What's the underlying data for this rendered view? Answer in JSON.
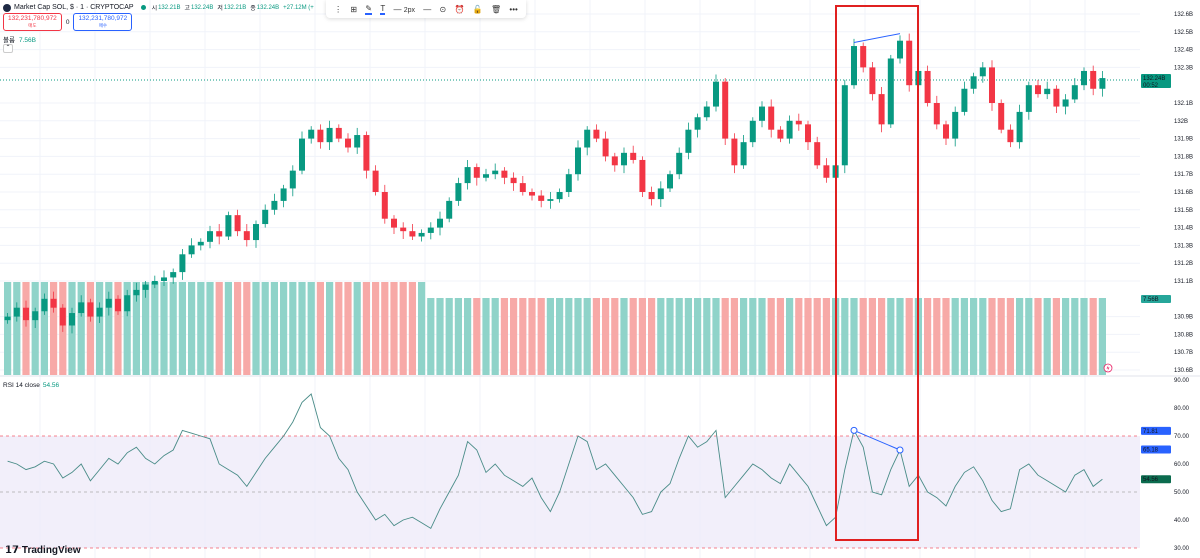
{
  "header": {
    "symbol": "Market Cap SOL, $ · 1 · CRYPTOCAP",
    "open_label": "시",
    "open": "132.21B",
    "high_label": "고",
    "high": "132.24B",
    "low_label": "저",
    "low": "132.21B",
    "close_label": "종",
    "close": "132.24B",
    "change": "+27.12M (+"
  },
  "trade": {
    "sell_price": "132,231,780,972",
    "sell_label": "매도",
    "separator": "0",
    "buy_price": "132,231,780,972",
    "buy_label": "매수"
  },
  "volume_legend": {
    "label": "볼륨",
    "value": "7.56B"
  },
  "toolbar": {},
  "rsi_legend": {
    "label": "RSI 14 close",
    "value": "54.56"
  },
  "branding": "TradingView",
  "price_tag": {
    "value": "132.24B",
    "countdown": "00:52"
  },
  "volume_tag": "7.56B",
  "rsi_tags": {
    "a": "71.81",
    "b": "65.18",
    "current": "54.56"
  },
  "colors": {
    "up": "#089981",
    "down": "#f23645",
    "vol_up": "#8fd3c9",
    "vol_down": "#f7a9a7",
    "rsi_line": "#4a8c88",
    "accent": "#2962ff"
  },
  "chart_data": {
    "type": "candlestick",
    "price_axis": {
      "ticks": [
        "132.6B",
        "132.5B",
        "132.4B",
        "132.3B",
        "132.1B",
        "132B",
        "131.9B",
        "131.8B",
        "131.7B",
        "131.6B",
        "131.5B",
        "131.4B",
        "131.3B",
        "131.2B",
        "131.1B",
        "130.9B",
        "130.8B",
        "130.7B",
        "130.6B"
      ],
      "range": [
        130.6,
        132.6
      ]
    },
    "closes": [
      130.9,
      130.95,
      130.88,
      130.93,
      131.0,
      130.95,
      130.85,
      130.92,
      130.98,
      130.9,
      130.95,
      131.0,
      130.93,
      131.02,
      131.05,
      131.08,
      131.1,
      131.12,
      131.15,
      131.25,
      131.3,
      131.32,
      131.38,
      131.35,
      131.47,
      131.38,
      131.33,
      131.42,
      131.5,
      131.55,
      131.62,
      131.72,
      131.9,
      131.95,
      131.88,
      131.96,
      131.9,
      131.85,
      131.92,
      131.72,
      131.6,
      131.45,
      131.4,
      131.38,
      131.35,
      131.37,
      131.4,
      131.45,
      131.55,
      131.65,
      131.74,
      131.68,
      131.7,
      131.72,
      131.68,
      131.65,
      131.6,
      131.58,
      131.55,
      131.56,
      131.6,
      131.7,
      131.85,
      131.95,
      131.9,
      131.8,
      131.75,
      131.82,
      131.78,
      131.6,
      131.56,
      131.62,
      131.7,
      131.82,
      131.95,
      132.02,
      132.08,
      132.22,
      131.9,
      131.75,
      131.88,
      132.0,
      132.08,
      131.95,
      131.9,
      132.0,
      131.98,
      131.88,
      131.75,
      131.68,
      131.75,
      132.2,
      132.42,
      132.3,
      132.15,
      131.98,
      132.35,
      132.45,
      132.2,
      132.28,
      132.1,
      131.98,
      131.9,
      132.05,
      132.18,
      132.25,
      132.3,
      132.1,
      131.95,
      131.88,
      132.05,
      132.2,
      132.15,
      132.18,
      132.08,
      132.12,
      132.2,
      132.28,
      132.18,
      132.24
    ],
    "volume_regimes": [
      {
        "count": 46,
        "value": 8.2
      },
      {
        "count": 74,
        "value": 7.56
      }
    ],
    "rsi": {
      "period": 14,
      "ticks": [
        "90.00",
        "80.00",
        "70.00",
        "60.00",
        "50.00",
        "40.00",
        "30.00"
      ],
      "range": [
        30,
        90
      ],
      "bands": [
        70,
        50,
        30
      ],
      "values": [
        61,
        60,
        58,
        59,
        61,
        60,
        55,
        57,
        60,
        54,
        58,
        62,
        60,
        64,
        66,
        62,
        60,
        63,
        65,
        72,
        71,
        70,
        69,
        60,
        58,
        56,
        52,
        57,
        62,
        66,
        70,
        75,
        82,
        85,
        73,
        70,
        62,
        58,
        50,
        45,
        40,
        42,
        38,
        40,
        41,
        39,
        37,
        44,
        50,
        56,
        68,
        65,
        57,
        60,
        56,
        54,
        52,
        55,
        48,
        43,
        50,
        60,
        70,
        68,
        58,
        60,
        56,
        52,
        48,
        42,
        43,
        50,
        53,
        62,
        70,
        66,
        68,
        72,
        48,
        52,
        56,
        60,
        58,
        55,
        53,
        60,
        56,
        52,
        45,
        38,
        41,
        58,
        72,
        66,
        50,
        49,
        58,
        65,
        52,
        56,
        50,
        48,
        45,
        52,
        57,
        59,
        54,
        47,
        43,
        44,
        58,
        60,
        56,
        54,
        52,
        50,
        56,
        58,
        52,
        54.56
      ]
    },
    "annotations": {
      "divergence_price": [
        92,
        97
      ],
      "divergence_rsi": [
        92,
        97
      ],
      "highlight_candles": [
        91,
        99
      ]
    }
  }
}
